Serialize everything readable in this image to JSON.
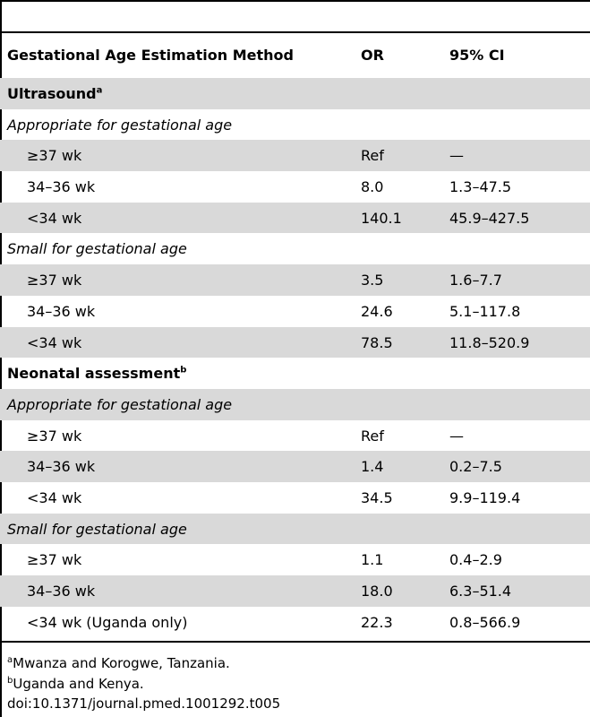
{
  "header": {
    "col_method": "Gestational Age Estimation Method",
    "col_or": "OR",
    "col_ci": "95% CI"
  },
  "rows": [
    {
      "type": "section",
      "label": "Ultrasound",
      "sup": "a"
    },
    {
      "type": "subsection",
      "label": "Appropriate for gestational age"
    },
    {
      "type": "data",
      "label": "≥37 wk",
      "or": "Ref",
      "ci": "—"
    },
    {
      "type": "data",
      "label": "34–36 wk",
      "or": "8.0",
      "ci": "1.3–47.5"
    },
    {
      "type": "data",
      "label": "<34 wk",
      "or": "140.1",
      "ci": "45.9–427.5"
    },
    {
      "type": "subsection",
      "label": "Small for gestational age"
    },
    {
      "type": "data",
      "label": "≥37 wk",
      "or": "3.5",
      "ci": "1.6–7.7"
    },
    {
      "type": "data",
      "label": "34–36 wk",
      "or": "24.6",
      "ci": "5.1–117.8"
    },
    {
      "type": "data",
      "label": "<34 wk",
      "or": "78.5",
      "ci": "11.8–520.9"
    },
    {
      "type": "section",
      "label": "Neonatal assessment",
      "sup": "b"
    },
    {
      "type": "subsection",
      "label": "Appropriate for gestational age"
    },
    {
      "type": "data",
      "label": "≥37 wk",
      "or": "Ref",
      "ci": "—"
    },
    {
      "type": "data",
      "label": "34–36 wk",
      "or": "1.4",
      "ci": "0.2–7.5"
    },
    {
      "type": "data",
      "label": "<34 wk",
      "or": "34.5",
      "ci": "9.9–119.4"
    },
    {
      "type": "subsection",
      "label": "Small for gestational age"
    },
    {
      "type": "data",
      "label": "≥37 wk",
      "or": "1.1",
      "ci": "0.4–2.9"
    },
    {
      "type": "data",
      "label": "34–36 wk",
      "or": "18.0",
      "ci": "6.3–51.4"
    },
    {
      "type": "data",
      "label": "<34 wk (Uganda only)",
      "or": "22.3",
      "ci": "0.8–566.9"
    }
  ],
  "footnotes": [
    {
      "sup": "a",
      "text": "Mwanza and Korogwe, Tanzania."
    },
    {
      "sup": "b",
      "text": "Uganda and Kenya."
    },
    {
      "sup": "",
      "text": "doi:10.1371/journal.pmed.1001292.t005"
    }
  ]
}
